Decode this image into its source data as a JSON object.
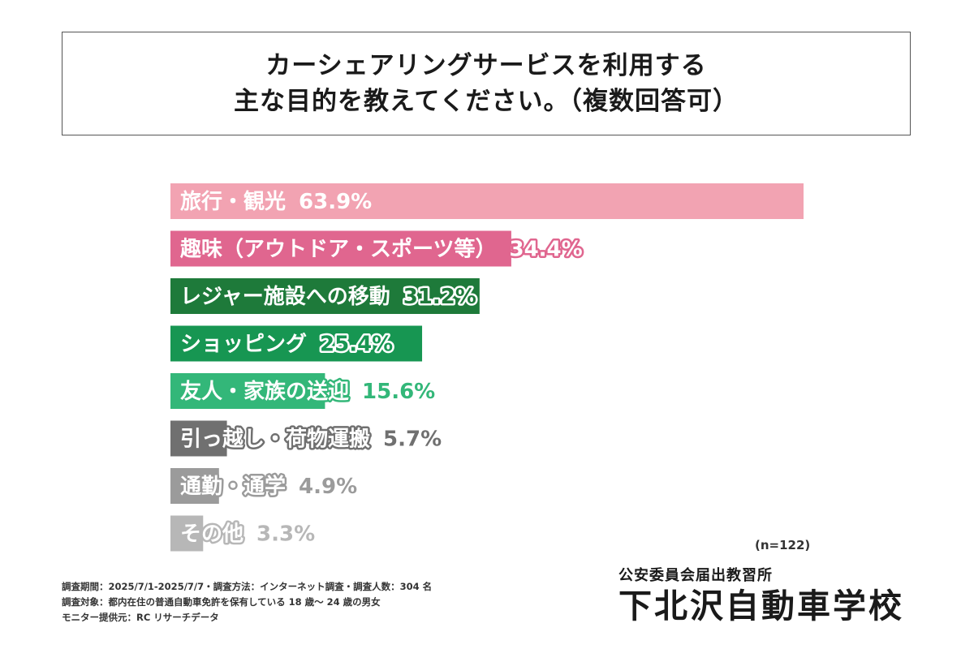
{
  "title": {
    "line1": "カーシェアリングサービスを利用する",
    "line2": "主な目的を教えてください。（複数回答可）"
  },
  "chart_data": {
    "type": "bar",
    "orientation": "horizontal",
    "unit": "%",
    "xlim": [
      0,
      100
    ],
    "grid": false,
    "categories": [
      "旅行・観光",
      "趣味（アウトドア・スポーツ等）",
      "レジャー施設への移動",
      "ショッピング",
      "友人・家族の送迎",
      "引っ越し・荷物運搬",
      "通勤・通学",
      "その他"
    ],
    "values": [
      63.9,
      34.4,
      31.2,
      25.4,
      15.6,
      5.7,
      4.9,
      3.3
    ],
    "value_labels": [
      "63.9%",
      "34.4%",
      "31.2%",
      "25.4%",
      "15.6%",
      "5.7%",
      "4.9%",
      "3.3%"
    ],
    "colors": [
      "#f2a3b2",
      "#e0668f",
      "#1e7a3a",
      "#179652",
      "#33b779",
      "#707070",
      "#9b9b9b",
      "#b7b7b7"
    ],
    "label_colors": [
      "#ffffff",
      "#ffffff",
      "#1e7a3a",
      "#179652",
      "#33b779",
      "#707070",
      "#9b9b9b",
      "#b7b7b7"
    ]
  },
  "sample_size": "(n=122)",
  "footnotes": [
    "調査期間：2025/7/1-2025/7/7・調査方法：インターネット調査・調査人数：304 名",
    "調査対象：都内在住の普通自動車免許を保有している 18 歳～ 24 歳の男女",
    "モニター提供元：RC リサーチデータ"
  ],
  "school": {
    "subtitle": "公安委員会届出教習所",
    "name": "下北沢自動車学校"
  }
}
